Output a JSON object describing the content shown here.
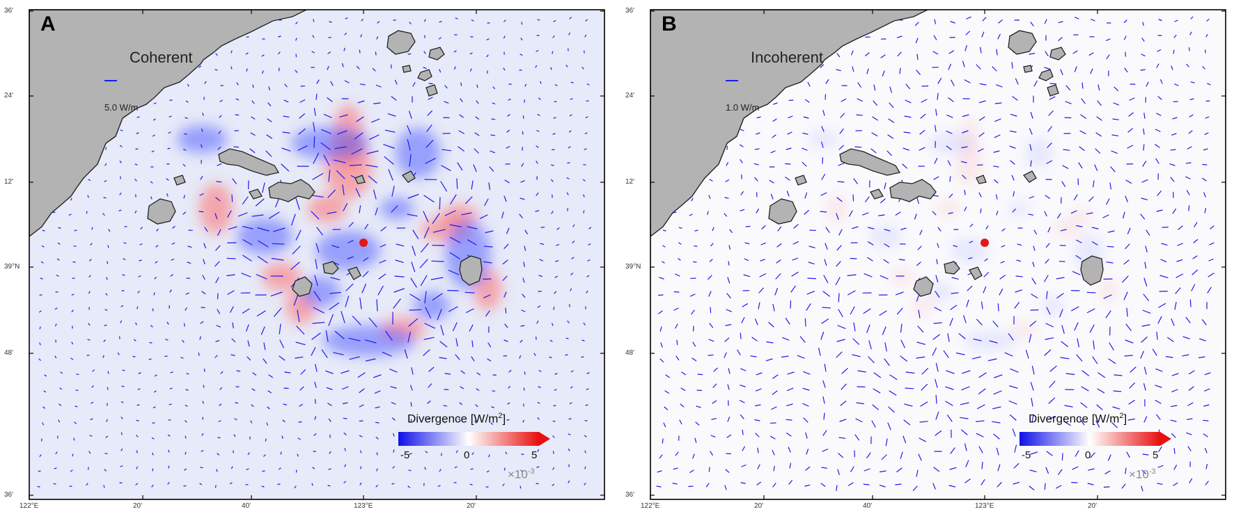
{
  "panels": [
    {
      "letter": "A",
      "title": "Coherent",
      "scale_label": "5.0 W/m",
      "field": "coherent",
      "colorbar": {
        "title": "Divergence [W/m",
        "sup": "2",
        "close": "]",
        "ticks": [
          "-5",
          "0",
          "5"
        ],
        "multiplier": "×10",
        "exp": "-3"
      },
      "lat_labels": [
        "36'",
        "24'",
        "12'",
        "39°N",
        "48'",
        "36'"
      ],
      "lon_labels": [
        "122°E",
        "20'",
        "40'",
        "123°E",
        "20'"
      ]
    },
    {
      "letter": "B",
      "title": "Incoherent",
      "scale_label": "1.0 W/m",
      "field": "incoherent",
      "colorbar": {
        "title": "Divergence [W/m",
        "sup": "2",
        "close": "]",
        "ticks": [
          "-5",
          "0",
          "5"
        ],
        "multiplier": "×10",
        "exp": "-3"
      },
      "lat_labels": [
        "36'",
        "24'",
        "12'",
        "39°N",
        "48'",
        "36'"
      ],
      "lon_labels": [
        "122°E",
        "20'",
        "40'",
        "123°E",
        "20'"
      ]
    }
  ],
  "colors": {
    "land": "#b3b3b3",
    "coast": "#222222",
    "vector": "#1a1aee",
    "marker": "#e01818",
    "coherent_bg": "#e7eaf8",
    "incoherent_bg": "#fafafd",
    "cbar_neg": "#1010e8",
    "cbar_pos": "#e81010"
  },
  "marker": {
    "name": "red-dot"
  }
}
